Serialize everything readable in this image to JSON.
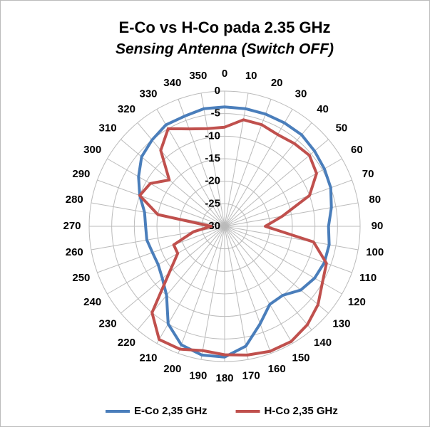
{
  "chart_data": {
    "type": "radar",
    "title": "E-Co vs H-Co pada 2.35 GHz",
    "subtitle": "Sensing Antenna (Switch OFF)",
    "categories": [
      "0",
      "10",
      "20",
      "30",
      "40",
      "50",
      "60",
      "70",
      "80",
      "90",
      "100",
      "110",
      "120",
      "130",
      "140",
      "150",
      "160",
      "170",
      "180",
      "190",
      "200",
      "210",
      "220",
      "230",
      "240",
      "250",
      "260",
      "270",
      "280",
      "290",
      "300",
      "310",
      "320",
      "330",
      "340",
      "350"
    ],
    "ylim": [
      -30,
      0
    ],
    "yticks": [
      -30,
      -25,
      -20,
      -15,
      -10,
      -5,
      0
    ],
    "grid": true,
    "legend": "bottom",
    "series": [
      {
        "name": "E-Co 2,35 GHz",
        "color": "#4a7ebb",
        "values": [
          -3.5,
          -3.5,
          -3.5,
          -3.5,
          -3.5,
          -4,
          -4.5,
          -5,
          -6,
          -7,
          -6.5,
          -6.5,
          -7,
          -8,
          -10,
          -10,
          -7,
          -3,
          -1,
          -1,
          -2,
          -5,
          -10,
          -12,
          -13,
          -13,
          -12.5,
          -12.5,
          -12,
          -10,
          -8,
          -6,
          -5,
          -4,
          -4,
          -3.5
        ]
      },
      {
        "name": "H-Co 2,35 GHz",
        "color": "#c0504d",
        "values": [
          -8,
          -6,
          -6,
          -6.5,
          -6,
          -5.5,
          -6.5,
          -10,
          -17,
          -21,
          -10,
          -6,
          -5,
          -3,
          -1.5,
          -0.5,
          -0.5,
          -1,
          -1.5,
          -2,
          -1,
          -1,
          -5,
          -14,
          -18,
          -18,
          -23,
          -27,
          -15,
          -10,
          -11,
          -14,
          -8,
          -5,
          -7,
          -8
        ]
      }
    ]
  }
}
